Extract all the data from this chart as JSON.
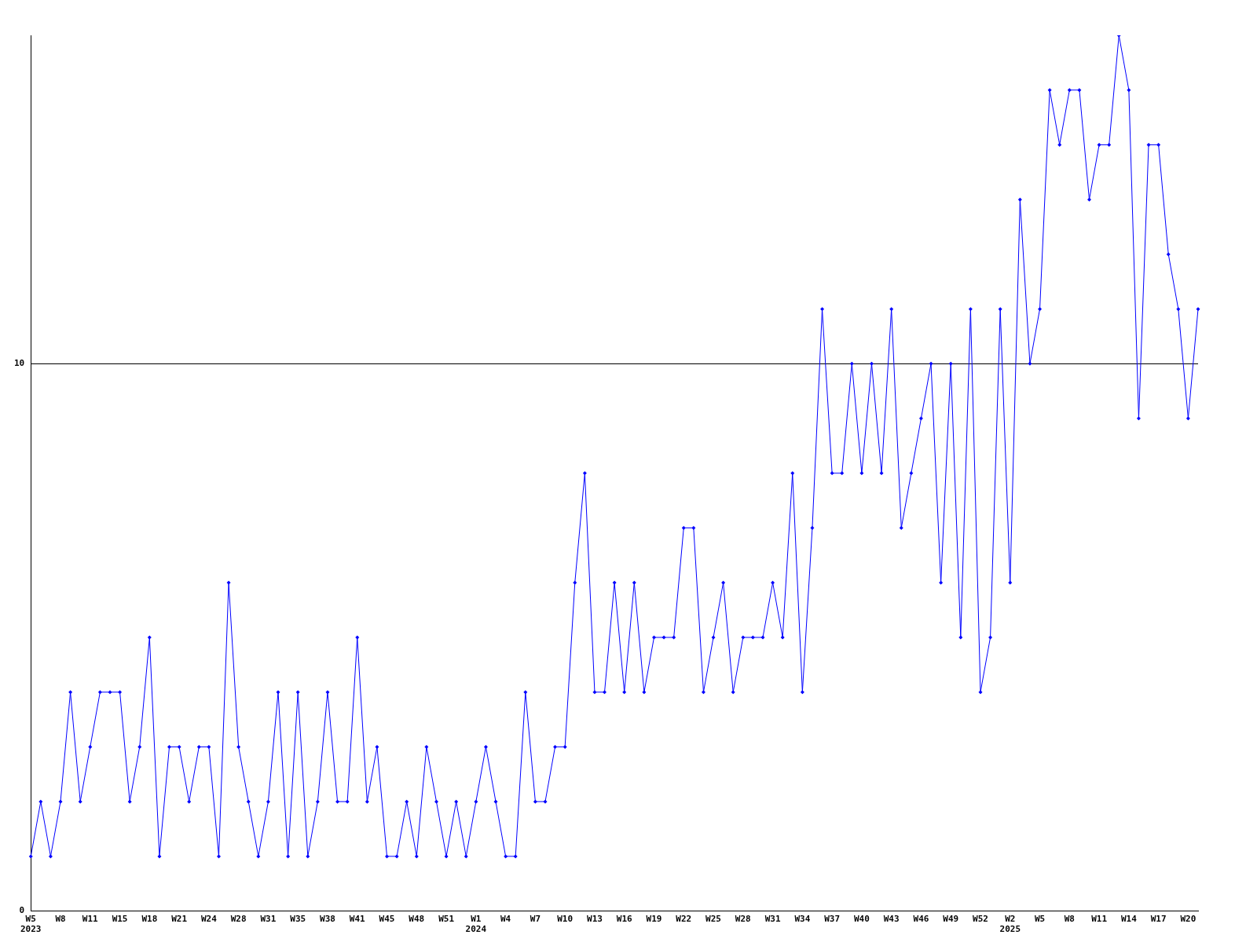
{
  "chart_data": {
    "type": "line",
    "categories": [
      "W5\n2023",
      null,
      null,
      "W8",
      null,
      null,
      "W11",
      null,
      null,
      "W15",
      null,
      null,
      "W18",
      null,
      null,
      "W21",
      null,
      null,
      "W24",
      null,
      null,
      "W28",
      null,
      null,
      "W31",
      null,
      null,
      "W35",
      null,
      null,
      "W38",
      null,
      null,
      "W41",
      null,
      null,
      "W45",
      null,
      null,
      "W48",
      null,
      null,
      "W51",
      null,
      null,
      "W1\n2024",
      null,
      null,
      "W4",
      null,
      null,
      "W7",
      null,
      null,
      "W10",
      null,
      null,
      "W13",
      null,
      null,
      "W16",
      null,
      null,
      "W19",
      null,
      null,
      "W22",
      null,
      null,
      "W25",
      null,
      null,
      "W28",
      null,
      null,
      "W31",
      null,
      null,
      "W34",
      null,
      null,
      "W37",
      null,
      null,
      "W40",
      null,
      null,
      "W43",
      null,
      null,
      "W46",
      null,
      null,
      "W49",
      null,
      null,
      "W52",
      null,
      null,
      "W2\n2025",
      null,
      null,
      "W5",
      null,
      null,
      "W8",
      null,
      null,
      "W11",
      null,
      null,
      "W14",
      null,
      null,
      "W17",
      null,
      null,
      "W20",
      null
    ],
    "series": [
      {
        "color": "#0000ff",
        "values": [
          1,
          2,
          1,
          2,
          4,
          2,
          3,
          4,
          4,
          4,
          2,
          3,
          5,
          1,
          3,
          3,
          2,
          3,
          3,
          1,
          6,
          3,
          2,
          1,
          2,
          4,
          1,
          4,
          1,
          2,
          4,
          2,
          2,
          5,
          2,
          3,
          1,
          1,
          2,
          1,
          3,
          2,
          1,
          2,
          1,
          2,
          3,
          2,
          1,
          1,
          4,
          2,
          2,
          3,
          3,
          6,
          8,
          4,
          4,
          6,
          4,
          6,
          4,
          5,
          5,
          5,
          7,
          7,
          4,
          5,
          6,
          4,
          5,
          5,
          5,
          6,
          5,
          8,
          4,
          7,
          11,
          8,
          8,
          10,
          8,
          10,
          8,
          11,
          7,
          8,
          9,
          10,
          6,
          10,
          5,
          11,
          4,
          5,
          11,
          6,
          13,
          10,
          11,
          15,
          14,
          15,
          15,
          13,
          14,
          14,
          16,
          15,
          9,
          14,
          14,
          12,
          11,
          9,
          11
        ]
      }
    ],
    "ylim": [
      0,
      16
    ],
    "yticks": [
      0,
      10
    ],
    "grid": "y",
    "legend": false,
    "marker": "diamond",
    "line_style": "solid"
  }
}
